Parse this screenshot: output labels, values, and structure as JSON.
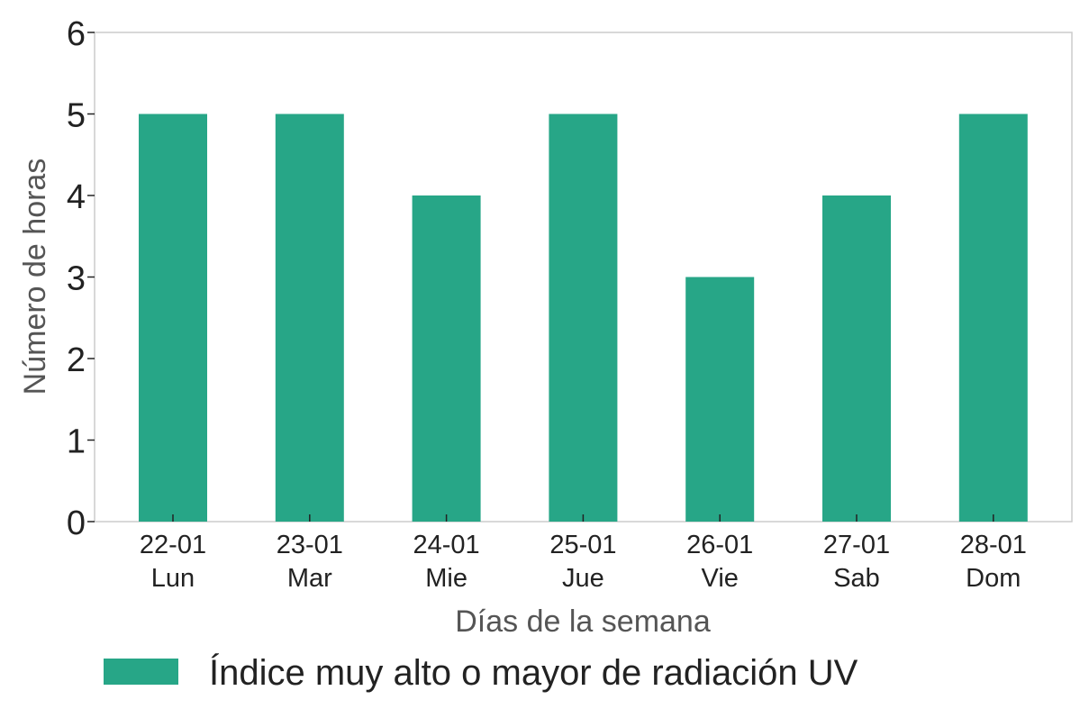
{
  "chart_data": {
    "type": "bar",
    "categories": [
      {
        "date": "22-01",
        "day": "Lun"
      },
      {
        "date": "23-01",
        "day": "Mar"
      },
      {
        "date": "24-01",
        "day": "Mie"
      },
      {
        "date": "25-01",
        "day": "Jue"
      },
      {
        "date": "26-01",
        "day": "Vie"
      },
      {
        "date": "27-01",
        "day": "Sab"
      },
      {
        "date": "28-01",
        "day": "Dom"
      }
    ],
    "series": [
      {
        "name": "Índice muy alto o mayor de radiación UV",
        "values": [
          5,
          5,
          4,
          5,
          3,
          4,
          5
        ],
        "color": "#27a687"
      }
    ],
    "xlabel": "Días de la semana",
    "ylabel": "Número de horas",
    "ylim": [
      0,
      6
    ],
    "yticks": [
      "0",
      "1",
      "2",
      "3",
      "4",
      "5",
      "6"
    ],
    "grid": false,
    "legend_position": "bottom"
  }
}
